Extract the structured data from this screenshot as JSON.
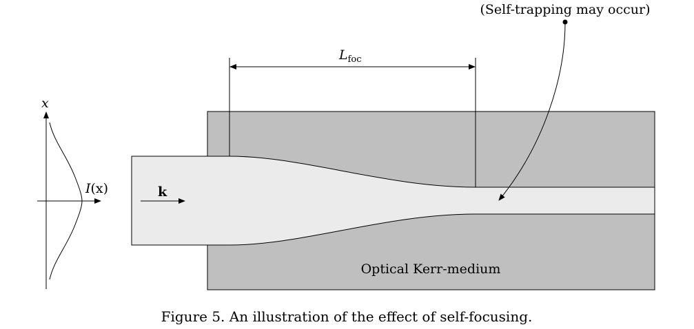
{
  "diagram": {
    "annotation": "(Self-trapping may occur)",
    "focal_length": {
      "symbol": "L",
      "subscript": "foc"
    },
    "x_axis_label": "x",
    "intensity": {
      "symbol": "I",
      "argument": "(x)"
    },
    "wavevector_label": "k",
    "medium_label": "Optical Kerr-medium",
    "colors": {
      "medium_fill": "#bfbfbf",
      "beam_fill": "#ebebeb",
      "stroke": "#000000",
      "background": "#ffffff"
    }
  },
  "caption": "Figure 5. An illustration of the effect of self-focusing."
}
